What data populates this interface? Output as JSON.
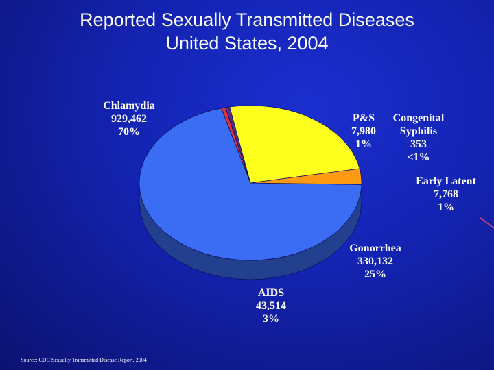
{
  "title": {
    "line1": "Reported Sexually Transmitted Diseases",
    "line2": "United States, 2004"
  },
  "source": "Source: CDC Sexually Transmitted Disease Report, 2004",
  "chart_data": {
    "type": "pie",
    "title": "Reported Sexually Transmitted Diseases United States, 2004",
    "three_d": true,
    "slices": [
      {
        "name": "Chlamydia",
        "value": 929462,
        "value_label": "929,462",
        "percent_label": "70%",
        "color": "#3a6cf4",
        "side_color": "#23408f"
      },
      {
        "name": "P&S",
        "value": 7980,
        "value_label": "7,980",
        "percent_label": "1%",
        "color": "#d8343c",
        "side_color": "#7c1a1e"
      },
      {
        "name": "Congenital Syphilis",
        "value": 353,
        "value_label": "353",
        "percent_label": "<1%",
        "color": "#f2f2f2",
        "side_color": "#9a9a9a"
      },
      {
        "name": "Early Latent",
        "value": 7768,
        "value_label": "7,768",
        "percent_label": "1%",
        "color": "#5c2a82",
        "side_color": "#2e1542"
      },
      {
        "name": "Gonorrhea",
        "value": 330132,
        "value_label": "330,132",
        "percent_label": "25%",
        "color": "#ffff1e",
        "side_color": "#807a00"
      },
      {
        "name": "AIDS",
        "value": 43514,
        "value_label": "43,514",
        "percent_label": "3%",
        "color": "#ff9a12",
        "side_color": "#6a3d08"
      }
    ]
  }
}
